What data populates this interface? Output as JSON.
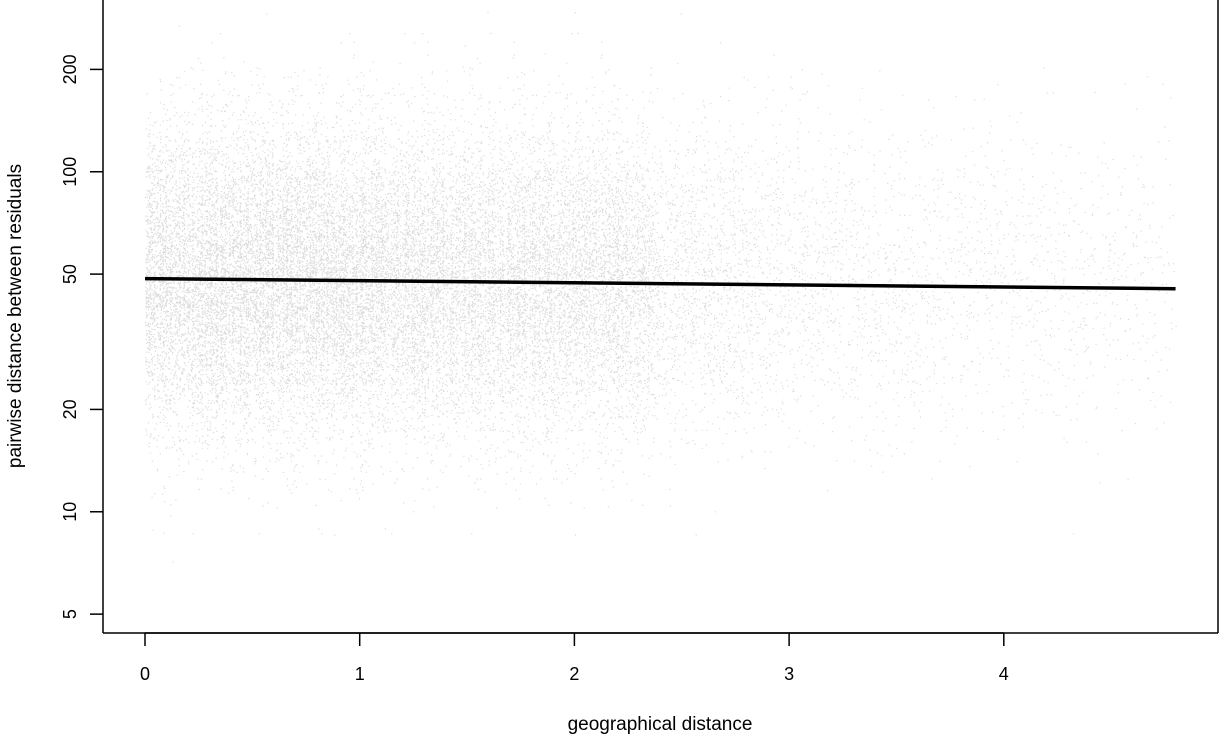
{
  "chart_data": {
    "type": "scatter",
    "title": "",
    "xlabel": "geographical distance",
    "ylabel": "pairwise distance between residuals",
    "xlim": [
      -0.2,
      4.9
    ],
    "ylim": [
      4.4,
      320
    ],
    "y_scale": "log",
    "x_ticks": [
      0,
      1,
      2,
      3,
      4
    ],
    "x_tick_labels": [
      "0",
      "1",
      "2",
      "3",
      "4"
    ],
    "y_ticks": [
      5,
      10,
      20,
      50,
      100,
      200
    ],
    "y_tick_labels": [
      "5",
      "10",
      "20",
      "50",
      "100",
      "200"
    ],
    "grid": false,
    "legend": "none",
    "point_color": "#9a9a9a",
    "line_color": "#000000",
    "trend_line": {
      "x": [
        0,
        4.8
      ],
      "y": [
        48.5,
        45.3
      ]
    },
    "density_profile": {
      "x": [
        0,
        0.5,
        1.0,
        1.5,
        1.8,
        2.3,
        2.4,
        3.0,
        3.5,
        4.0,
        4.4,
        4.8
      ],
      "relative_density": [
        1.0,
        0.95,
        0.9,
        0.7,
        0.75,
        0.6,
        0.3,
        0.15,
        0.1,
        0.08,
        0.06,
        0.04
      ]
    },
    "y_median": 48,
    "y_range_typical": [
      15,
      170
    ]
  }
}
